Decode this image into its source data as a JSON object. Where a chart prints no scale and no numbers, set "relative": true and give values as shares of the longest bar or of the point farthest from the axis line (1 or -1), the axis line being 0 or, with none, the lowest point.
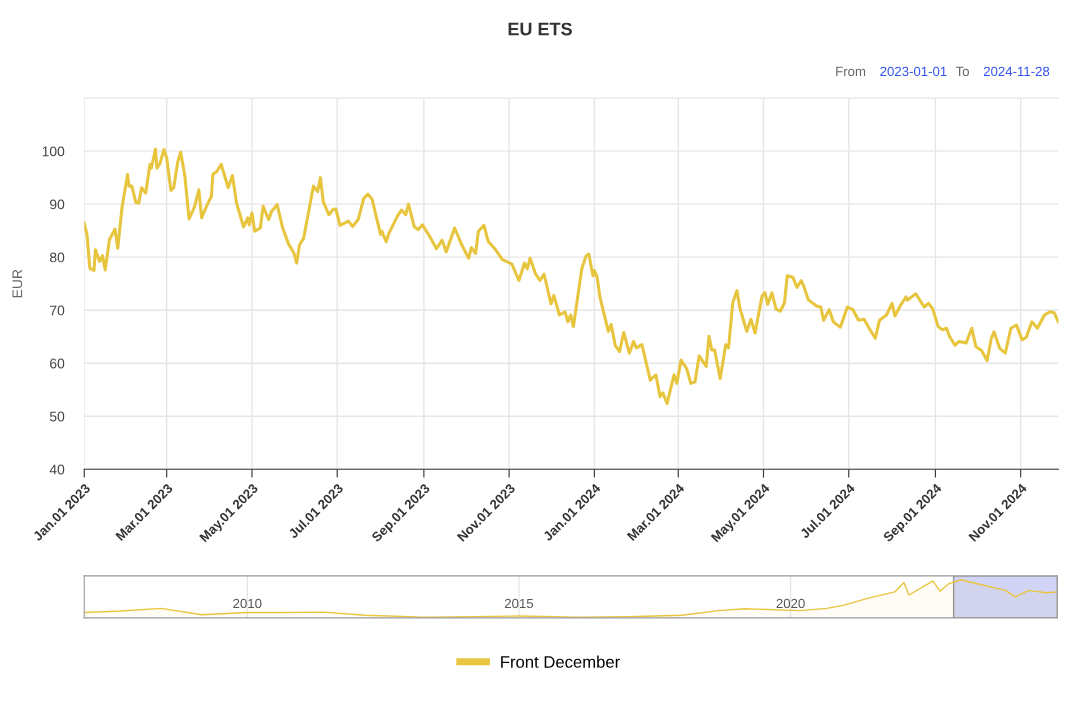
{
  "chart_data": [
    {
      "type": "line",
      "title": "EU ETS",
      "ylabel": "EUR",
      "annotations": [
        "From",
        "2023-01-01",
        "To",
        "2024-11-28"
      ],
      "legend": "bottom",
      "grid": true,
      "marker": "none",
      "line_style": "solid",
      "xlim": [
        "2023-01-01",
        "2024-11-28"
      ],
      "ylim": [
        40,
        110
      ],
      "yticks": [
        40,
        50,
        60,
        70,
        80,
        90,
        100
      ],
      "xticks": [
        {
          "value": "2023-01-01",
          "label": "Jan.01 2023"
        },
        {
          "value": "2023-03-01",
          "label": "Mar.01 2023"
        },
        {
          "value": "2023-05-01",
          "label": "May.01 2023"
        },
        {
          "value": "2023-07-01",
          "label": "Jul.01 2023"
        },
        {
          "value": "2023-09-01",
          "label": "Sep.01 2023"
        },
        {
          "value": "2023-11-01",
          "label": "Nov.01 2023"
        },
        {
          "value": "2024-01-01",
          "label": "Jan.01 2024"
        },
        {
          "value": "2024-03-01",
          "label": "Mar.01 2024"
        },
        {
          "value": "2024-05-01",
          "label": "May.01 2024"
        },
        {
          "value": "2024-07-01",
          "label": "Jul.01 2024"
        },
        {
          "value": "2024-09-01",
          "label": "Sep.01 2024"
        },
        {
          "value": "2024-11-01",
          "label": "Nov.01 2024"
        }
      ],
      "x": [
        "2023-01-01",
        "2023-01-03",
        "2023-01-05",
        "2023-01-08",
        "2023-01-09",
        "2023-01-12",
        "2023-01-14",
        "2023-01-16",
        "2023-01-19",
        "2023-01-23",
        "2023-01-25",
        "2023-01-28",
        "2023-02-01",
        "2023-02-02",
        "2023-02-04",
        "2023-02-07",
        "2023-02-09",
        "2023-02-11",
        "2023-02-14",
        "2023-02-17",
        "2023-02-18",
        "2023-02-21",
        "2023-02-22",
        "2023-02-24",
        "2023-02-27",
        "2023-03-01",
        "2023-03-04",
        "2023-03-06",
        "2023-03-09",
        "2023-03-11",
        "2023-03-14",
        "2023-03-17",
        "2023-03-21",
        "2023-03-24",
        "2023-03-26",
        "2023-03-30",
        "2023-04-02",
        "2023-04-03",
        "2023-04-06",
        "2023-04-09",
        "2023-04-14",
        "2023-04-17",
        "2023-04-20",
        "2023-04-25",
        "2023-04-28",
        "2023-04-29",
        "2023-05-01",
        "2023-05-03",
        "2023-05-07",
        "2023-05-09",
        "2023-05-13",
        "2023-05-15",
        "2023-05-19",
        "2023-05-23",
        "2023-05-27",
        "2023-05-31",
        "2023-06-02",
        "2023-06-04",
        "2023-06-07",
        "2023-06-14",
        "2023-06-17",
        "2023-06-19",
        "2023-06-21",
        "2023-06-25",
        "2023-06-28",
        "2023-06-30",
        "2023-07-03",
        "2023-07-09",
        "2023-07-12",
        "2023-07-16",
        "2023-07-20",
        "2023-07-23",
        "2023-07-26",
        "2023-08-01",
        "2023-08-02",
        "2023-08-05",
        "2023-08-07",
        "2023-08-13",
        "2023-08-16",
        "2023-08-19",
        "2023-08-21",
        "2023-08-25",
        "2023-08-28",
        "2023-08-31",
        "2023-09-05",
        "2023-09-10",
        "2023-09-14",
        "2023-09-17",
        "2023-09-23",
        "2023-09-28",
        "2023-10-03",
        "2023-10-05",
        "2023-10-08",
        "2023-10-10",
        "2023-10-14",
        "2023-10-17",
        "2023-10-22",
        "2023-10-27",
        "2023-11-03",
        "2023-11-08",
        "2023-11-12",
        "2023-11-14",
        "2023-11-16",
        "2023-11-20",
        "2023-11-23",
        "2023-11-26",
        "2023-11-29",
        "2023-12-01",
        "2023-12-03",
        "2023-12-07",
        "2023-12-11",
        "2023-12-13",
        "2023-12-15",
        "2023-12-17",
        "2023-12-23",
        "2023-12-26",
        "2023-12-28",
        "2023-12-31",
        "2024-01-01",
        "2024-01-03",
        "2024-01-05",
        "2024-01-11",
        "2024-01-13",
        "2024-01-16",
        "2024-01-19",
        "2024-01-22",
        "2024-01-26",
        "2024-01-29",
        "2024-01-31",
        "2024-02-04",
        "2024-02-10",
        "2024-02-14",
        "2024-02-17",
        "2024-02-19",
        "2024-02-22",
        "2024-02-27",
        "2024-02-29",
        "2024-03-03",
        "2024-03-07",
        "2024-03-10",
        "2024-03-13",
        "2024-03-16",
        "2024-03-21",
        "2024-03-23",
        "2024-03-25",
        "2024-03-27",
        "2024-03-31",
        "2024-04-04",
        "2024-04-06",
        "2024-04-09",
        "2024-04-12",
        "2024-04-14",
        "2024-04-19",
        "2024-04-22",
        "2024-04-25",
        "2024-04-27",
        "2024-04-30",
        "2024-05-02",
        "2024-05-04",
        "2024-05-07",
        "2024-05-10",
        "2024-05-13",
        "2024-05-16",
        "2024-05-18",
        "2024-05-22",
        "2024-05-25",
        "2024-05-28",
        "2024-05-30",
        "2024-06-02",
        "2024-06-08",
        "2024-06-11",
        "2024-06-13",
        "2024-06-17",
        "2024-06-20",
        "2024-06-25",
        "2024-06-30",
        "2024-07-04",
        "2024-07-08",
        "2024-07-12",
        "2024-07-16",
        "2024-07-20",
        "2024-07-23",
        "2024-07-28",
        "2024-08-01",
        "2024-08-03",
        "2024-08-07",
        "2024-08-11",
        "2024-08-12",
        "2024-08-18",
        "2024-08-24",
        "2024-08-27",
        "2024-08-30",
        "2024-09-03",
        "2024-09-06",
        "2024-09-09",
        "2024-09-11",
        "2024-09-15",
        "2024-09-18",
        "2024-09-23",
        "2024-09-27",
        "2024-09-30",
        "2024-10-04",
        "2024-10-08",
        "2024-10-11",
        "2024-10-13",
        "2024-10-17",
        "2024-10-21",
        "2024-10-25",
        "2024-10-29",
        "2024-11-02",
        "2024-11-05",
        "2024-11-09",
        "2024-11-13",
        "2024-11-18",
        "2024-11-22",
        "2024-11-25",
        "2024-11-28"
      ],
      "series": [
        {
          "name": "Front December",
          "color": "#e8c53f",
          "values": [
            86.4,
            84.2,
            77.9,
            77.5,
            81.4,
            79.2,
            80.3,
            77.6,
            83.3,
            85.3,
            81.7,
            89.3,
            95.6,
            93.4,
            93.4,
            90.3,
            90.2,
            93.1,
            92.1,
            97.5,
            96.8,
            100.4,
            96.8,
            97.5,
            100.3,
            98.7,
            92.6,
            93.1,
            98.1,
            99.8,
            95.3,
            87.2,
            89.6,
            92.7,
            87.4,
            89.9,
            91.5,
            95.6,
            96.2,
            97.5,
            93.1,
            95.4,
            90.2,
            85.7,
            87.4,
            86.1,
            88.3,
            84.9,
            85.5,
            89.6,
            87.1,
            88.6,
            89.9,
            85.5,
            82.6,
            80.8,
            78.9,
            82.3,
            83.6,
            93.4,
            92.4,
            95.0,
            90.5,
            88.0,
            89.0,
            89.1,
            86.0,
            86.8,
            85.8,
            87.1,
            91.1,
            91.9,
            90.9,
            84.3,
            84.9,
            82.9,
            84.5,
            87.7,
            88.9,
            88.0,
            90.0,
            85.8,
            85.2,
            86.1,
            84.0,
            81.6,
            83.2,
            81.0,
            85.5,
            82.4,
            79.8,
            81.8,
            80.7,
            84.9,
            86.0,
            83.0,
            81.5,
            79.6,
            78.7,
            75.6,
            78.9,
            77.8,
            79.8,
            76.8,
            75.6,
            76.8,
            73.4,
            71.2,
            72.8,
            69.1,
            69.7,
            67.8,
            69.1,
            66.9,
            77.8,
            80.2,
            80.6,
            76.5,
            77.5,
            76.2,
            72.4,
            66.0,
            67.3,
            63.3,
            62.2,
            65.8,
            61.9,
            64.1,
            62.9,
            63.5,
            56.8,
            57.8,
            53.7,
            54.4,
            52.4,
            57.8,
            56.2,
            60.6,
            59.0,
            56.2,
            56.5,
            61.4,
            59.4,
            65.1,
            62.5,
            62.5,
            57.1,
            63.5,
            62.9,
            71.4,
            73.7,
            70.5,
            66.0,
            68.3,
            65.7,
            68.6,
            72.7,
            73.3,
            71.1,
            73.3,
            70.2,
            69.8,
            71.4,
            76.5,
            76.2,
            74.3,
            75.6,
            74.4,
            72.0,
            70.8,
            70.6,
            68.1,
            70.1,
            67.8,
            66.8,
            70.6,
            70.1,
            68.1,
            68.3,
            66.4,
            64.7,
            68.1,
            69.1,
            71.3,
            68.9,
            70.9,
            72.5,
            71.9,
            73.1,
            70.6,
            71.3,
            70.3,
            66.9,
            66.3,
            66.6,
            65.1,
            63.4,
            64.1,
            63.8,
            66.6,
            63.1,
            62.4,
            60.5,
            64.7,
            65.9,
            62.8,
            61.9,
            66.6,
            67.2,
            64.4,
            64.9,
            67.8,
            66.6,
            69.1,
            69.7,
            69.5,
            67.8
          ]
        }
      ]
    },
    {
      "type": "area",
      "relative": true,
      "grid": "x",
      "tick_labels": "x",
      "xlim": [
        "2007-01-01",
        "2024-11-28"
      ],
      "xticks": [
        {
          "value": "2010-01-01",
          "label": "2010"
        },
        {
          "value": "2015-01-01",
          "label": "2015"
        },
        {
          "value": "2020-01-01",
          "label": "2020"
        }
      ],
      "bands": [
        {
          "axis": "x",
          "from": "2023-01-01",
          "to": "2024-11-28",
          "color": "#cdd0f7"
        }
      ],
      "x": [
        "2007-01-01",
        "2007-09-01",
        "2008-06-01",
        "2009-03-01",
        "2010-01-01",
        "2010-09-01",
        "2011-06-01",
        "2012-03-01",
        "2013-04-01",
        "2014-03-01",
        "2015-01-01",
        "2016-02-01",
        "2017-01-01",
        "2018-01-01",
        "2018-09-01",
        "2019-03-01",
        "2020-03-01",
        "2020-09-01",
        "2021-01-01",
        "2021-06-01",
        "2021-12-01",
        "2022-02-01",
        "2022-03-07",
        "2022-08-15",
        "2022-10-01",
        "2022-12-01",
        "2023-02-20",
        "2023-06-01",
        "2023-12-15",
        "2024-02-20",
        "2024-05-20",
        "2024-09-15",
        "2024-11-28"
      ],
      "series": [
        {
          "color": "#e8c53f",
          "values": [
            0.14,
            0.18,
            0.25,
            0.08,
            0.14,
            0.14,
            0.15,
            0.07,
            0.02,
            0.03,
            0.05,
            0.02,
            0.03,
            0.07,
            0.19,
            0.24,
            0.19,
            0.25,
            0.34,
            0.51,
            0.68,
            0.93,
            0.6,
            0.97,
            0.7,
            0.9,
            1.0,
            0.9,
            0.72,
            0.55,
            0.72,
            0.66,
            0.68
          ]
        }
      ]
    }
  ]
}
